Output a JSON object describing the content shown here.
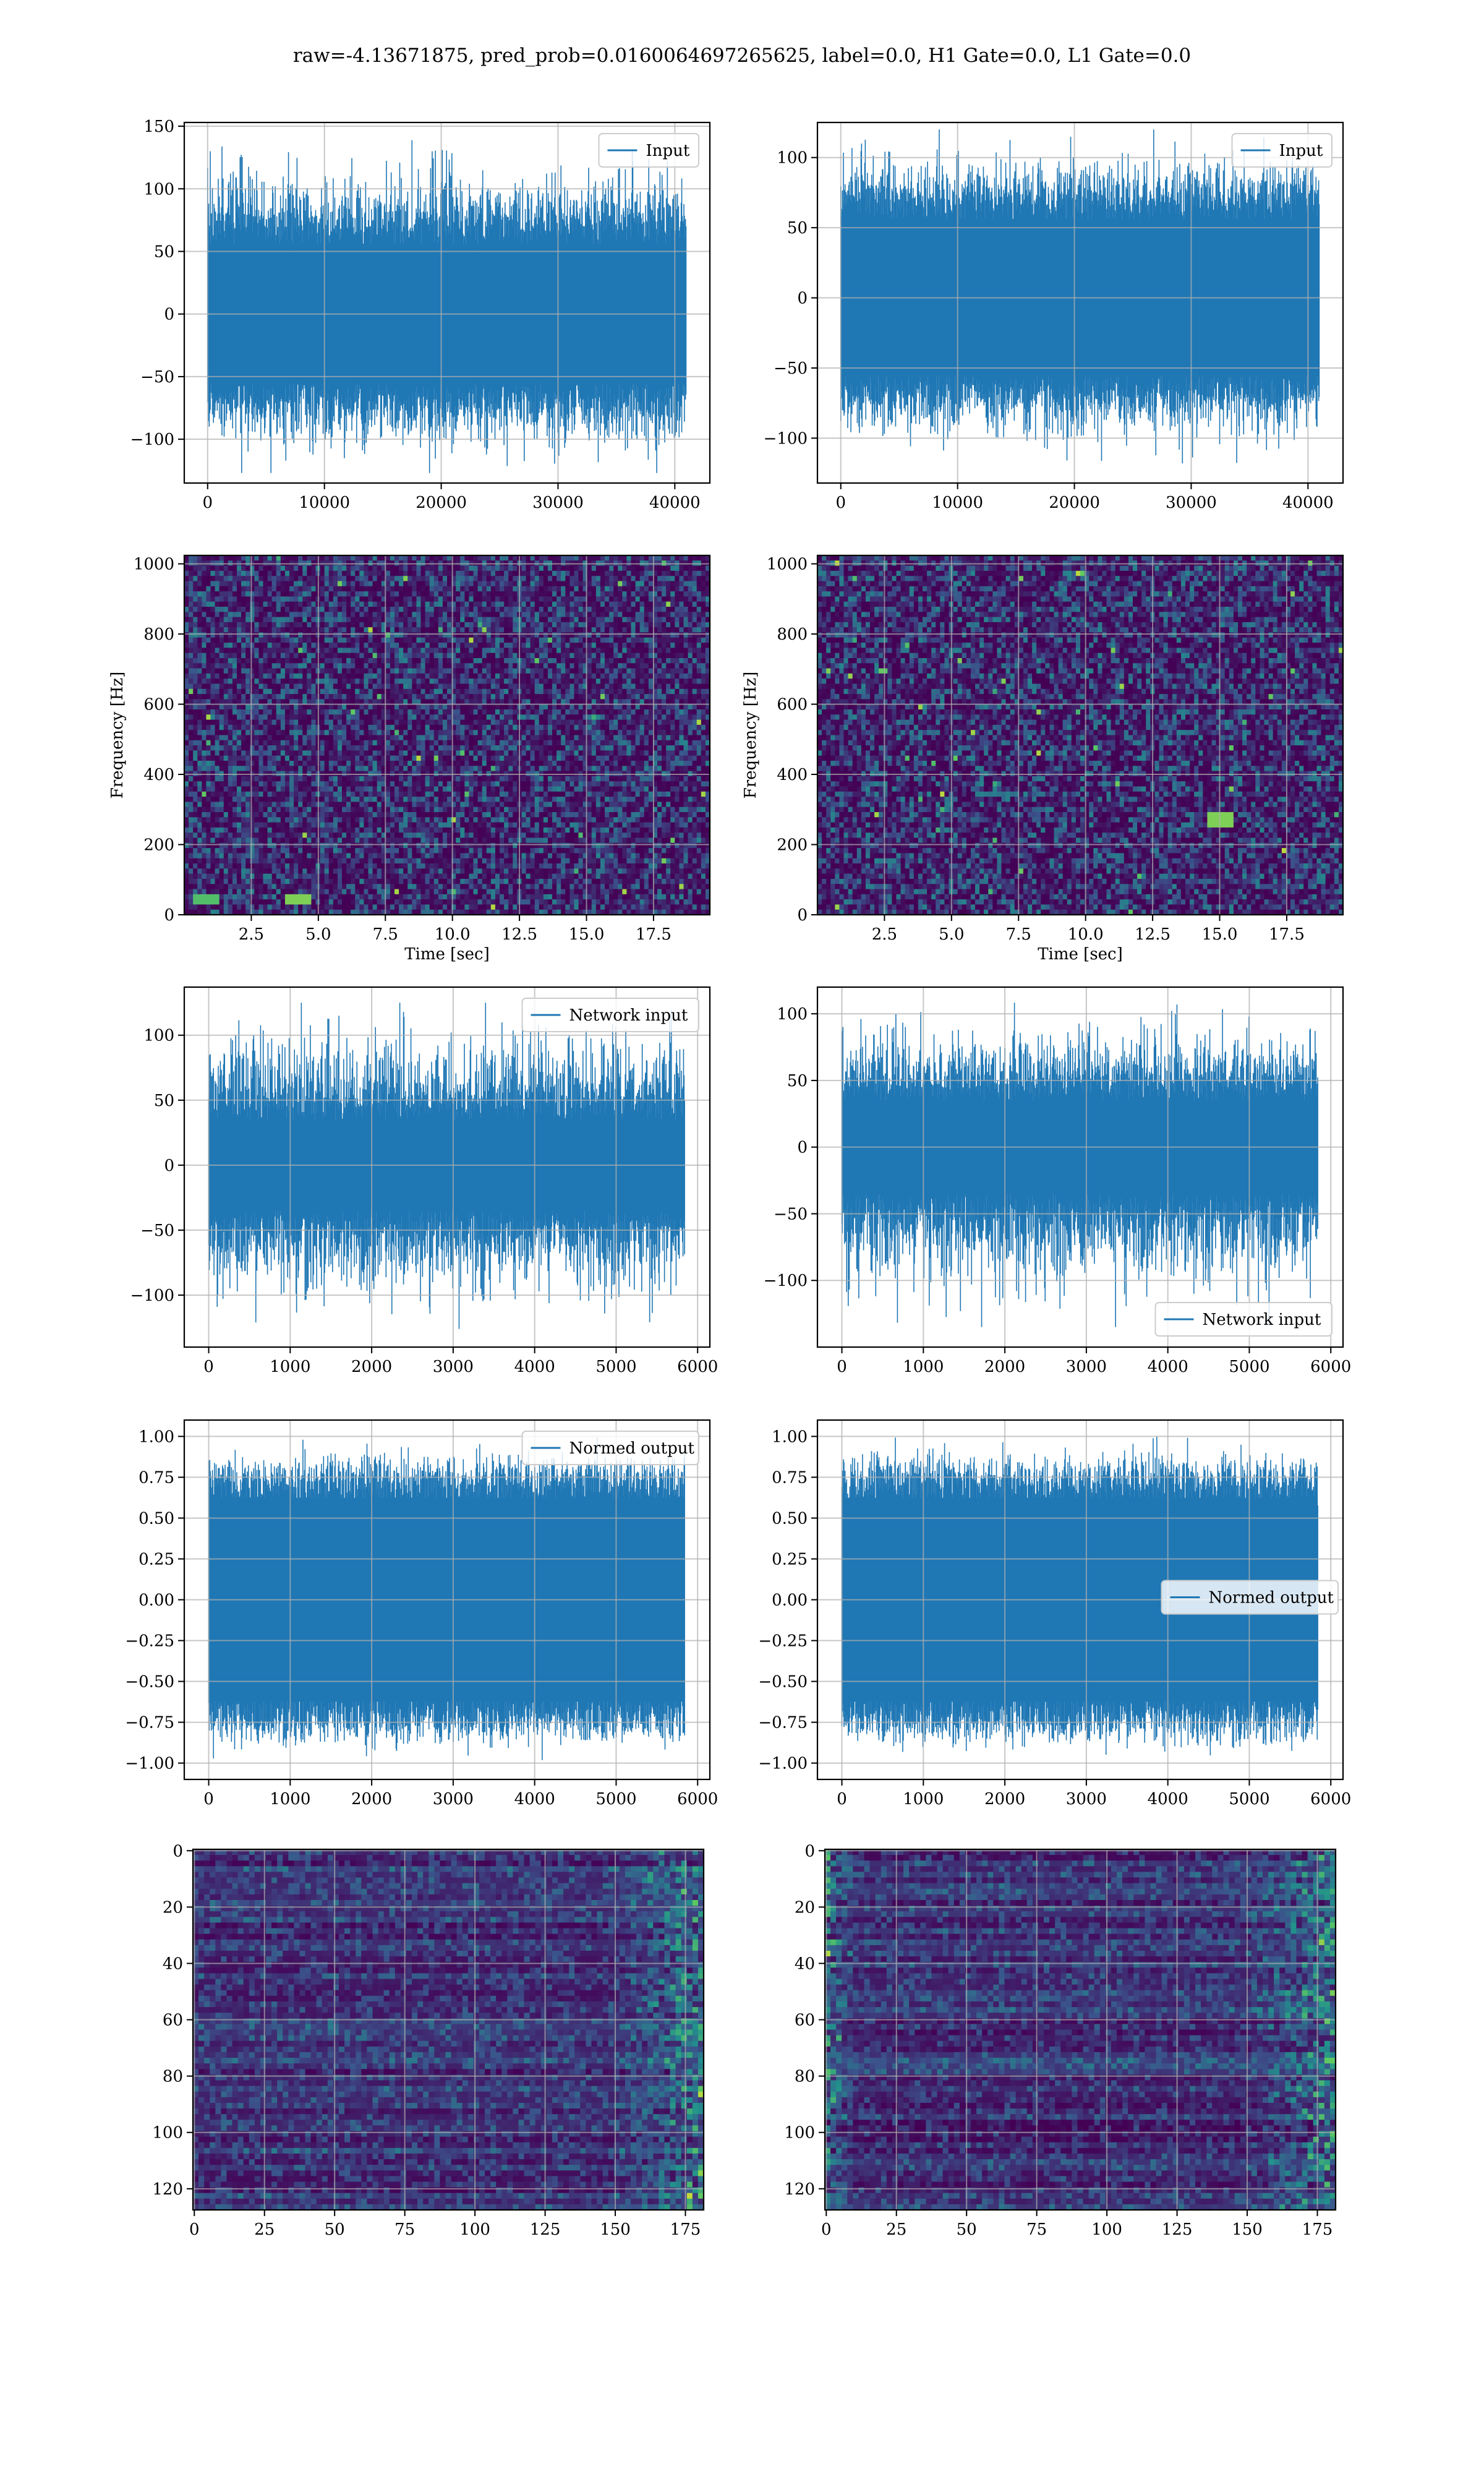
{
  "figure": {
    "title": "raw=-4.13671875, pred_prob=0.0160064697265625, label=0.0, H1 Gate=0.0, L1 Gate=0.0"
  },
  "colors": {
    "series": "#1f77b4",
    "grid": "#b0b0b0",
    "viridis": [
      "#440154",
      "#3b528b",
      "#21918c",
      "#5ec962",
      "#fde725"
    ]
  },
  "chart_data": [
    {
      "id": "input-h1",
      "type": "line",
      "title": "",
      "xlabel": "",
      "ylabel": "",
      "legend": {
        "label": "Input",
        "position": "top-right"
      },
      "xlim": [
        -2000,
        43000
      ],
      "ylim": [
        -135,
        153
      ],
      "xticks": [
        0,
        10000,
        20000,
        30000,
        40000
      ],
      "yticks": [
        -100,
        -50,
        0,
        50,
        100,
        150
      ],
      "n_points": 40960,
      "envelope": {
        "core": [
          -72,
          72
        ],
        "extreme": [
          -127,
          140
        ]
      },
      "grid": true
    },
    {
      "id": "input-l1",
      "type": "line",
      "title": "",
      "xlabel": "",
      "ylabel": "",
      "legend": {
        "label": "Input",
        "position": "top-right"
      },
      "xlim": [
        -2000,
        43000
      ],
      "ylim": [
        -132,
        125
      ],
      "xticks": [
        0,
        10000,
        20000,
        30000,
        40000
      ],
      "yticks": [
        -100,
        -50,
        0,
        50,
        100
      ],
      "n_points": 40960,
      "envelope": {
        "core": [
          -72,
          72
        ],
        "extreme": [
          -118,
          120
        ]
      },
      "grid": true
    },
    {
      "id": "spectrogram-h1",
      "type": "heatmap",
      "title": "",
      "xlabel": "Time [sec]",
      "ylabel": "Frequency [Hz]",
      "xlim": [
        0,
        19.6
      ],
      "ylim": [
        0,
        1024
      ],
      "xticks": [
        2.5,
        5.0,
        7.5,
        10.0,
        12.5,
        15.0,
        17.5
      ],
      "yticks": [
        0,
        200,
        400,
        600,
        800,
        1000
      ],
      "colormap": "viridis",
      "grid": true,
      "hotspots": [
        {
          "x": 4.2,
          "y": 45,
          "level": 0.8
        },
        {
          "x": 0.8,
          "y": 45,
          "level": 0.7
        }
      ]
    },
    {
      "id": "spectrogram-l1",
      "type": "heatmap",
      "title": "",
      "xlabel": "Time [sec]",
      "ylabel": "Frequency [Hz]",
      "xlim": [
        0,
        19.6
      ],
      "ylim": [
        0,
        1024
      ],
      "xticks": [
        2.5,
        5.0,
        7.5,
        10.0,
        12.5,
        15.0,
        17.5
      ],
      "yticks": [
        0,
        200,
        400,
        600,
        800,
        1000
      ],
      "colormap": "viridis",
      "grid": true,
      "hotspots": [
        {
          "x": 15.0,
          "y": 275,
          "level": 0.8
        }
      ]
    },
    {
      "id": "network-input-h1",
      "type": "line",
      "title": "",
      "xlabel": "",
      "ylabel": "",
      "legend": {
        "label": "Network input",
        "position": "top-right"
      },
      "xlim": [
        -300,
        6150
      ],
      "ylim": [
        -140,
        137
      ],
      "xticks": [
        0,
        1000,
        2000,
        3000,
        4000,
        5000,
        6000
      ],
      "yticks": [
        -100,
        -50,
        0,
        50,
        100
      ],
      "n_points": 5840,
      "envelope": {
        "core": [
          -45,
          45
        ],
        "extreme": [
          -126,
          125
        ]
      },
      "grid": true
    },
    {
      "id": "network-input-l1",
      "type": "line",
      "title": "",
      "xlabel": "",
      "ylabel": "",
      "legend": {
        "label": "Network input",
        "position": "bottom-right"
      },
      "xlim": [
        -300,
        6150
      ],
      "ylim": [
        -150,
        120
      ],
      "xticks": [
        0,
        1000,
        2000,
        3000,
        4000,
        5000,
        6000
      ],
      "yticks": [
        -100,
        -50,
        0,
        50,
        100
      ],
      "n_points": 5840,
      "envelope": {
        "core": [
          -45,
          45
        ],
        "extreme": [
          -135,
          112
        ]
      },
      "grid": true
    },
    {
      "id": "normed-output-h1",
      "type": "line",
      "title": "",
      "xlabel": "",
      "ylabel": "",
      "legend": {
        "label": "Normed output",
        "position": "top-right"
      },
      "xlim": [
        -300,
        6150
      ],
      "ylim": [
        -1.1,
        1.1
      ],
      "xticks": [
        0,
        1000,
        2000,
        3000,
        4000,
        5000,
        6000
      ],
      "yticks": [
        -1.0,
        -0.75,
        -0.5,
        -0.25,
        0.0,
        0.25,
        0.5,
        0.75,
        1.0
      ],
      "n_points": 5840,
      "envelope": {
        "core": [
          -0.8,
          0.8
        ],
        "extreme": [
          -1.0,
          1.0
        ]
      },
      "grid": true
    },
    {
      "id": "normed-output-l1",
      "type": "line",
      "title": "",
      "xlabel": "",
      "ylabel": "",
      "legend": {
        "label": "Normed output",
        "position": "center-right"
      },
      "xlim": [
        -300,
        6150
      ],
      "ylim": [
        -1.1,
        1.1
      ],
      "xticks": [
        0,
        1000,
        2000,
        3000,
        4000,
        5000,
        6000
      ],
      "yticks": [
        -1.0,
        -0.75,
        -0.5,
        -0.25,
        0.0,
        0.25,
        0.5,
        0.75,
        1.0
      ],
      "n_points": 5840,
      "envelope": {
        "core": [
          -0.8,
          0.8
        ],
        "extreme": [
          -1.0,
          1.0
        ]
      },
      "grid": true
    },
    {
      "id": "feature-map-h1",
      "type": "heatmap",
      "title": "",
      "xlabel": "",
      "ylabel": "",
      "xlim": [
        -0.5,
        181.5
      ],
      "ylim": [
        127.5,
        -0.5
      ],
      "xticks": [
        0,
        25,
        50,
        75,
        100,
        125,
        150,
        175
      ],
      "yticks": [
        0,
        20,
        40,
        60,
        80,
        100,
        120
      ],
      "colormap": "viridis",
      "grid": true,
      "bright_region": "right-edge"
    },
    {
      "id": "feature-map-l1",
      "type": "heatmap",
      "title": "",
      "xlabel": "",
      "ylabel": "",
      "xlim": [
        -0.5,
        181.5
      ],
      "ylim": [
        127.5,
        -0.5
      ],
      "xticks": [
        0,
        25,
        50,
        75,
        100,
        125,
        150,
        175
      ],
      "yticks": [
        0,
        20,
        40,
        60,
        80,
        100,
        120
      ],
      "colormap": "viridis",
      "grid": true,
      "bright_region": "left-and-right-edges"
    }
  ]
}
